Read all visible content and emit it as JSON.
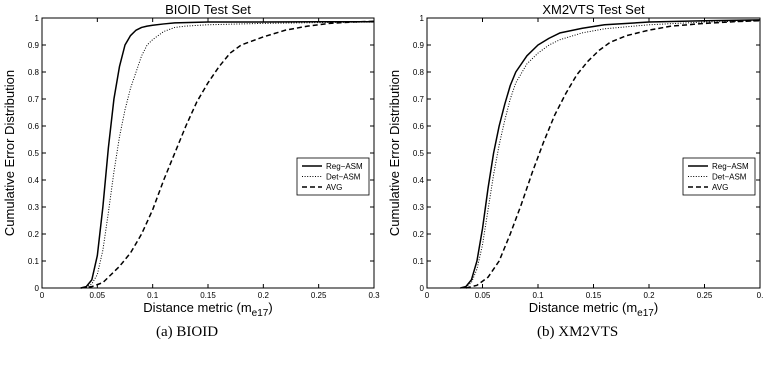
{
  "chart_data": [
    {
      "type": "line",
      "title": "BIOID Test Set",
      "xlabel": "Distance metric (m",
      "xlabel_sub": "e17",
      "xlabel_close": ")",
      "ylabel": "Cumulative Error Distribution",
      "xlim": [
        0,
        0.3
      ],
      "ylim": [
        0,
        1
      ],
      "xticks": [
        "0",
        "0.05",
        "0.1",
        "0.15",
        "0.2",
        "0.25",
        "0.3"
      ],
      "yticks": [
        "0",
        "0.1",
        "0.2",
        "0.3",
        "0.4",
        "0.5",
        "0.6",
        "0.7",
        "0.8",
        "0.9",
        "1"
      ],
      "legend_position": "right",
      "caption": "(a)  BIOID",
      "series": [
        {
          "name": "Reg−ASM",
          "style": "solid",
          "x": [
            0.035,
            0.04,
            0.045,
            0.05,
            0.055,
            0.06,
            0.065,
            0.07,
            0.075,
            0.08,
            0.085,
            0.09,
            0.095,
            0.1,
            0.11,
            0.12,
            0.15,
            0.2,
            0.25,
            0.3
          ],
          "y": [
            0,
            0.005,
            0.03,
            0.12,
            0.3,
            0.52,
            0.7,
            0.82,
            0.9,
            0.935,
            0.955,
            0.965,
            0.97,
            0.973,
            0.978,
            0.982,
            0.985,
            0.985,
            0.986,
            0.986
          ]
        },
        {
          "name": "Det−ASM",
          "style": "dotted",
          "x": [
            0.035,
            0.04,
            0.045,
            0.05,
            0.055,
            0.06,
            0.065,
            0.07,
            0.075,
            0.08,
            0.085,
            0.09,
            0.095,
            0.1,
            0.11,
            0.12,
            0.13,
            0.15,
            0.2,
            0.25,
            0.3
          ],
          "y": [
            0,
            0.003,
            0.015,
            0.05,
            0.14,
            0.28,
            0.43,
            0.56,
            0.66,
            0.74,
            0.8,
            0.86,
            0.9,
            0.92,
            0.95,
            0.965,
            0.97,
            0.975,
            0.98,
            0.983,
            0.985
          ]
        },
        {
          "name": "AVG",
          "style": "dashed",
          "x": [
            0.035,
            0.045,
            0.055,
            0.06,
            0.065,
            0.07,
            0.08,
            0.09,
            0.1,
            0.11,
            0.12,
            0.13,
            0.14,
            0.15,
            0.16,
            0.17,
            0.18,
            0.2,
            0.22,
            0.24,
            0.26,
            0.28,
            0.3
          ],
          "y": [
            0,
            0.005,
            0.02,
            0.04,
            0.06,
            0.08,
            0.13,
            0.2,
            0.29,
            0.4,
            0.5,
            0.6,
            0.69,
            0.76,
            0.82,
            0.87,
            0.9,
            0.93,
            0.955,
            0.97,
            0.98,
            0.985,
            0.988
          ]
        }
      ]
    },
    {
      "type": "line",
      "title": "XM2VTS Test Set",
      "xlabel": "Distance metric (m",
      "xlabel_sub": "e17",
      "xlabel_close": ")",
      "ylabel": "Cumulative Error Distribution",
      "xlim": [
        0,
        0.3
      ],
      "ylim": [
        0,
        1
      ],
      "xticks": [
        "0",
        "0.05",
        "0.1",
        "0.15",
        "0.2",
        "0.25",
        "0."
      ],
      "yticks": [
        "0",
        "0.1",
        "0.2",
        "0.3",
        "0.4",
        "0.5",
        "0.6",
        "0.7",
        "0.8",
        "0.9",
        "1"
      ],
      "legend_position": "right",
      "caption": "(b)  XM2VTS",
      "series": [
        {
          "name": "Reg−ASM",
          "style": "solid",
          "x": [
            0.03,
            0.035,
            0.04,
            0.045,
            0.05,
            0.055,
            0.06,
            0.065,
            0.07,
            0.075,
            0.08,
            0.09,
            0.1,
            0.11,
            0.12,
            0.14,
            0.16,
            0.2,
            0.25,
            0.3
          ],
          "y": [
            0,
            0.005,
            0.03,
            0.1,
            0.22,
            0.37,
            0.5,
            0.6,
            0.68,
            0.75,
            0.8,
            0.86,
            0.9,
            0.925,
            0.945,
            0.962,
            0.975,
            0.985,
            0.99,
            0.993
          ]
        },
        {
          "name": "Det−ASM",
          "style": "dotted",
          "x": [
            0.03,
            0.035,
            0.04,
            0.045,
            0.05,
            0.055,
            0.06,
            0.065,
            0.07,
            0.075,
            0.08,
            0.09,
            0.1,
            0.11,
            0.12,
            0.14,
            0.16,
            0.2,
            0.25,
            0.3
          ],
          "y": [
            0,
            0.004,
            0.02,
            0.07,
            0.16,
            0.29,
            0.42,
            0.53,
            0.62,
            0.7,
            0.76,
            0.83,
            0.87,
            0.9,
            0.92,
            0.945,
            0.96,
            0.975,
            0.985,
            0.99
          ]
        },
        {
          "name": "AVG",
          "style": "dashed",
          "x": [
            0.035,
            0.045,
            0.055,
            0.065,
            0.075,
            0.085,
            0.095,
            0.105,
            0.115,
            0.125,
            0.135,
            0.145,
            0.155,
            0.165,
            0.18,
            0.2,
            0.22,
            0.25,
            0.28,
            0.3
          ],
          "y": [
            0,
            0.01,
            0.04,
            0.1,
            0.2,
            0.31,
            0.43,
            0.54,
            0.64,
            0.72,
            0.79,
            0.84,
            0.88,
            0.91,
            0.935,
            0.955,
            0.97,
            0.98,
            0.987,
            0.99
          ]
        }
      ]
    }
  ]
}
